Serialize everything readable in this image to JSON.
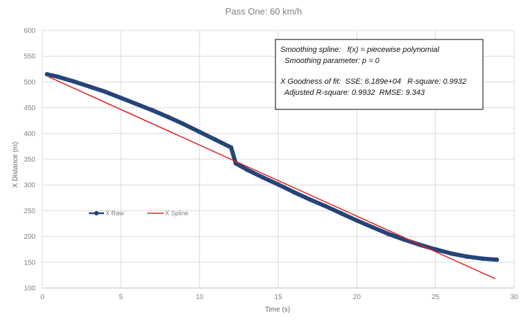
{
  "chart_data": {
    "type": "line",
    "title": "Pass One: 60 km/h",
    "xlabel": "Time (s)",
    "ylabel": "X Distance (m)",
    "xlim": [
      0,
      30
    ],
    "ylim": [
      100,
      600
    ],
    "xticks": [
      0,
      5,
      10,
      15,
      20,
      25,
      30
    ],
    "yticks": [
      100,
      150,
      200,
      250,
      300,
      350,
      400,
      450,
      500,
      550,
      600
    ],
    "grid": true,
    "legend_position": "center-left",
    "series": [
      {
        "name": "X Raw",
        "color": "#264478",
        "marker": "circle",
        "x": [
          0.3,
          1,
          2,
          3,
          4,
          5,
          6,
          7,
          8,
          9,
          10,
          11,
          12,
          12.3,
          13,
          14,
          15,
          16,
          17,
          18,
          19,
          20,
          21,
          22,
          23,
          24,
          25,
          26,
          27,
          28,
          28.9
        ],
        "y": [
          515,
          510,
          501,
          491,
          481,
          469,
          457,
          445,
          432,
          418,
          403,
          388,
          373,
          342,
          330,
          315,
          301,
          286,
          272,
          259,
          245,
          231,
          218,
          205,
          194,
          184,
          175,
          167,
          161,
          157,
          155
        ]
      },
      {
        "name": "X Spline",
        "color": "#e02020",
        "marker": "none",
        "x": [
          0.4,
          28.8
        ],
        "y": [
          510,
          118
        ]
      }
    ],
    "annotation": {
      "lines": [
        "Smoothing spline:   f(x) = piecewise polynomial",
        "  Smoothing parameter: p = 0",
        "",
        "X Goodness of fit:  SSE: 6.189e+04   R-square: 0.9932",
        "  Adjusted R-square: 0.9932  RMSE: 9.343"
      ]
    }
  }
}
